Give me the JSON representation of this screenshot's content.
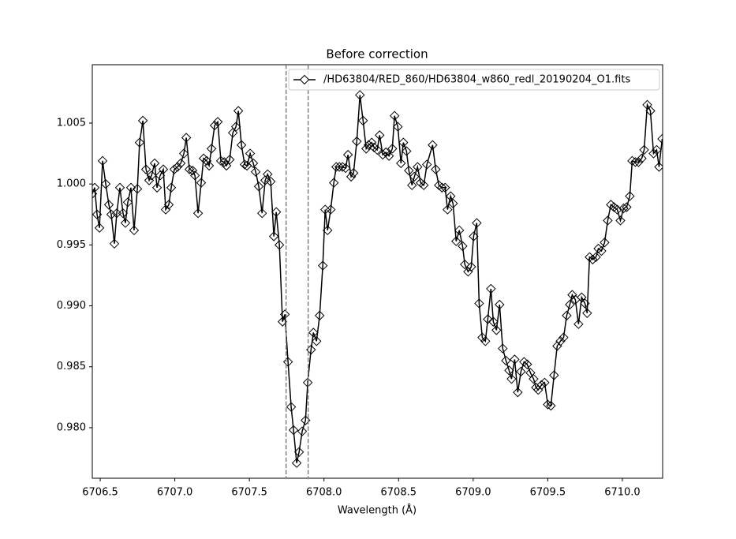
{
  "chart_data": {
    "type": "line",
    "title": "Before correction",
    "x_label": "Wavelength (Å)",
    "x": [
      6706.447,
      6706.463,
      6706.479,
      6706.495,
      6706.516,
      6706.537,
      6706.558,
      6706.574,
      6706.595,
      6706.611,
      6706.632,
      6706.653,
      6706.669,
      6706.685,
      6706.706,
      6706.727,
      6706.749,
      6706.764,
      6706.786,
      6706.807,
      6706.828,
      6706.844,
      6706.865,
      6706.881,
      6706.902,
      6706.923,
      6706.939,
      6706.96,
      6706.976,
      6706.997,
      6707.018,
      6707.04,
      6707.061,
      6707.077,
      6707.098,
      6707.119,
      6707.135,
      6707.156,
      6707.177,
      6707.193,
      6707.214,
      6707.23,
      6707.246,
      6707.267,
      6707.288,
      6707.309,
      6707.331,
      6707.346,
      6707.368,
      6707.389,
      6707.41,
      6707.426,
      6707.447,
      6707.468,
      6707.484,
      6707.505,
      6707.526,
      6707.542,
      6707.563,
      6707.585,
      6707.606,
      6707.622,
      6707.643,
      6707.664,
      6707.68,
      6707.701,
      6707.722,
      6707.738,
      6707.759,
      6707.78,
      6707.796,
      6707.817,
      6707.833,
      6707.854,
      6707.876,
      6707.891,
      6707.913,
      6707.929,
      6707.95,
      6707.971,
      6707.992,
      6708.008,
      6708.024,
      6708.045,
      6708.066,
      6708.082,
      6708.103,
      6708.124,
      6708.145,
      6708.161,
      6708.182,
      6708.198,
      6708.22,
      6708.241,
      6708.262,
      6708.283,
      6708.299,
      6708.32,
      6708.336,
      6708.357,
      6708.373,
      6708.394,
      6708.415,
      6708.436,
      6708.458,
      6708.473,
      6708.495,
      6708.516,
      6708.532,
      6708.553,
      6708.569,
      6708.59,
      6708.606,
      6708.627,
      6708.648,
      6708.669,
      6708.69,
      6708.728,
      6708.749,
      6708.77,
      6708.791,
      6708.812,
      6708.828,
      6708.849,
      6708.865,
      6708.886,
      6708.907,
      6708.929,
      6708.944,
      6708.966,
      6708.987,
      6709.003,
      6709.024,
      6709.04,
      6709.061,
      6709.082,
      6709.098,
      6709.119,
      6709.135,
      6709.156,
      6709.177,
      6709.198,
      6709.22,
      6709.241,
      6709.257,
      6709.278,
      6709.299,
      6709.32,
      6709.341,
      6709.362,
      6709.384,
      6709.405,
      6709.421,
      6709.436,
      6709.458,
      6709.479,
      6709.5,
      6709.521,
      6709.542,
      6709.563,
      6709.585,
      6709.606,
      6709.627,
      6709.648,
      6709.664,
      6709.685,
      6709.706,
      6709.727,
      6709.749,
      6709.764,
      6709.78,
      6709.801,
      6709.823,
      6709.839,
      6709.86,
      6709.881,
      6709.902,
      6709.923,
      6709.944,
      6709.966,
      6709.987,
      6710.008,
      6710.029,
      6710.05,
      6710.066,
      6710.087,
      6710.108,
      6710.13,
      6710.146,
      6710.167,
      6710.188,
      6710.209,
      6710.23,
      6710.246,
      6710.267
    ],
    "series": [
      {
        "name": "/HD63804/RED_860/HD63804_w860_redl_20190204_O1.fits",
        "color": "#000000",
        "marker": "diamond",
        "values": [
          0.9992,
          0.9997,
          0.9975,
          0.9964,
          1.0019,
          1.0,
          0.9983,
          0.9975,
          0.9951,
          0.9976,
          0.9997,
          0.9976,
          0.9968,
          0.9985,
          0.9997,
          0.9962,
          0.9996,
          1.0034,
          1.0052,
          1.0012,
          1.0003,
          1.0007,
          1.0017,
          0.9997,
          1.0007,
          1.0012,
          0.9979,
          0.9983,
          0.9997,
          1.0012,
          1.0014,
          1.0017,
          1.0025,
          1.0038,
          1.0012,
          1.0011,
          1.0007,
          0.9976,
          1.0001,
          1.0021,
          1.0019,
          1.0015,
          1.0029,
          1.0048,
          1.0051,
          1.0019,
          1.0018,
          1.0015,
          1.002,
          1.0042,
          1.0047,
          1.006,
          1.0032,
          1.0016,
          1.0015,
          1.0025,
          1.0017,
          1.001,
          0.9998,
          0.9976,
          1.0003,
          1.0008,
          1.0002,
          0.9957,
          0.9977,
          0.995,
          0.9887,
          0.9893,
          0.9854,
          0.9817,
          0.9798,
          0.9771,
          0.978,
          0.9797,
          0.9806,
          0.9837,
          0.9864,
          0.9878,
          0.9871,
          0.9892,
          0.9933,
          0.9979,
          0.9962,
          0.9979,
          1.0001,
          1.0014,
          1.0014,
          1.0014,
          1.0013,
          1.0024,
          1.0006,
          1.0009,
          1.0035,
          1.0073,
          1.0052,
          1.0029,
          1.0032,
          1.0034,
          1.003,
          1.0028,
          1.004,
          1.0024,
          1.0026,
          1.0023,
          1.0029,
          1.0056,
          1.0047,
          1.0017,
          1.0034,
          1.0027,
          1.0011,
          0.9999,
          1.0006,
          1.0014,
          1.0001,
          0.9999,
          1.0016,
          1.0032,
          1.0012,
          0.9999,
          0.9997,
          0.9997,
          0.9979,
          0.999,
          0.9984,
          0.9953,
          0.9962,
          0.9949,
          0.9934,
          0.9928,
          0.9932,
          0.9957,
          0.9968,
          0.9902,
          0.9874,
          0.9871,
          0.9889,
          0.9914,
          0.9887,
          0.988,
          0.9901,
          0.9865,
          0.9855,
          0.9847,
          0.984,
          0.9856,
          0.9829,
          0.9846,
          0.9854,
          0.9852,
          0.9845,
          0.984,
          0.9833,
          0.9831,
          0.9835,
          0.9837,
          0.9819,
          0.9818,
          0.9843,
          0.9867,
          0.9871,
          0.9874,
          0.9892,
          0.9901,
          0.9909,
          0.9905,
          0.9885,
          0.9907,
          0.9902,
          0.9894,
          0.994,
          0.9938,
          0.994,
          0.9947,
          0.9945,
          0.9952,
          0.997,
          0.9983,
          0.9981,
          0.9979,
          0.997,
          0.998,
          0.9981,
          0.999,
          1.0019,
          1.0018,
          1.0018,
          1.0021,
          1.0028,
          1.0065,
          1.006,
          1.0025,
          1.0028,
          1.0014,
          1.0037
        ]
      }
    ],
    "xlim": [
      6706.447,
      6710.27
    ],
    "ylim": [
      0.97585,
      1.00979
    ],
    "xticks": [
      6706.5,
      {
        "value": 6707.0,
        "label": "6707.0"
      },
      6707.5,
      {
        "value": 6708.0,
        "label": "6708.0"
      },
      6708.5,
      {
        "value": 6709.0,
        "label": "6709.0"
      },
      6709.5,
      {
        "value": 6710.0,
        "label": "6710.0"
      }
    ],
    "yticks": [
      {
        "value": 0.98,
        "label": "0.980"
      },
      0.985,
      {
        "value": 0.99,
        "label": "0.990"
      },
      0.995,
      {
        "value": 1.0,
        "label": "1.000"
      },
      1.005
    ],
    "vlines": [
      6707.746,
      6707.894
    ],
    "vline_color": "#808080",
    "legend": "upper right"
  }
}
